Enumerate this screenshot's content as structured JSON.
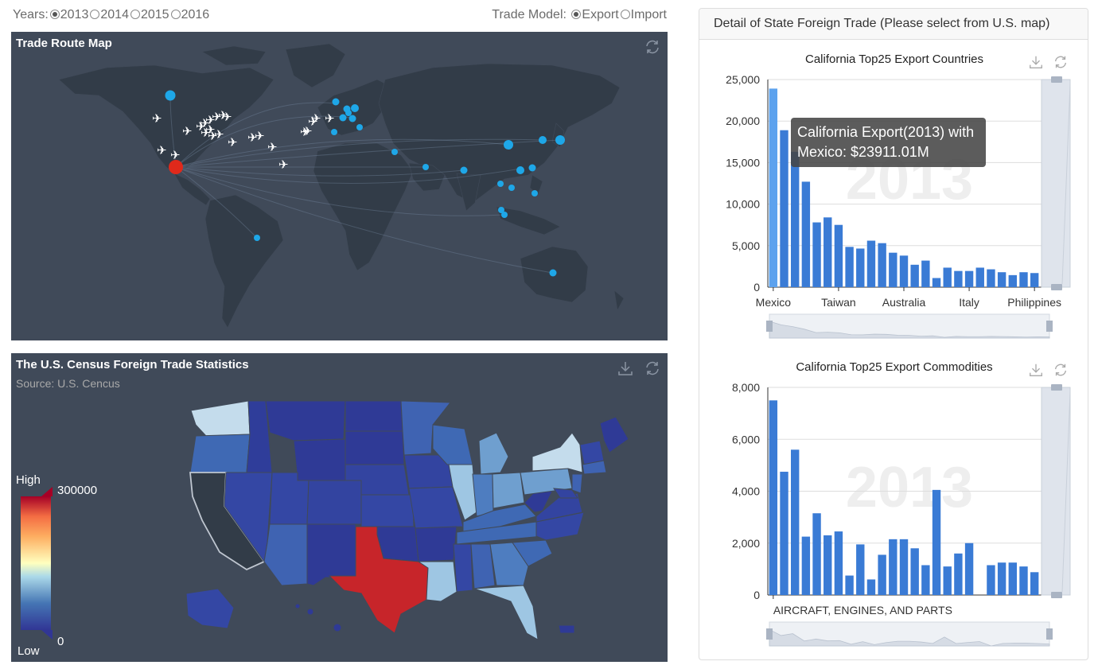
{
  "controls": {
    "years_label": "Years:",
    "years": [
      {
        "label": "2013",
        "checked": true
      },
      {
        "label": "2014",
        "checked": false
      },
      {
        "label": "2015",
        "checked": false
      },
      {
        "label": "2016",
        "checked": false
      }
    ],
    "model_label": "Trade Model:",
    "models": [
      {
        "label": "Export",
        "checked": true
      },
      {
        "label": "Import",
        "checked": false
      }
    ]
  },
  "route_map": {
    "title": "Trade Route Map",
    "icons": [
      "refresh-icon"
    ],
    "colors": {
      "background": "#404a59",
      "land": "#323c48",
      "point": "#1ea7e8",
      "origin": "#e0291b",
      "plane": "#ffffff"
    }
  },
  "us_map": {
    "title": "The U.S. Census Foreign Trade Statistics",
    "subtitle": "Source: U.S. Cencus",
    "icons": [
      "download-icon",
      "refresh-icon"
    ],
    "visual_map": {
      "high_label": "High",
      "low_label": "Low",
      "max": "300000",
      "min": "0"
    },
    "colors": {
      "low": "#313695",
      "mid": "#e0f3f8",
      "high": "#a50026",
      "selected": "#323c48"
    }
  },
  "detail": {
    "header": "Detail of State Foreign Trade (Please select from U.S. map)",
    "countries_chart": {
      "title": "California Top25 Export Countries",
      "watermark": "2013",
      "tooltip_line1": "California Export(2013) with",
      "tooltip_line2": "Mexico: $23911.01M",
      "icons": [
        "download-icon",
        "refresh-icon"
      ]
    },
    "commodities_chart": {
      "title": "California Top25 Export Commodities",
      "watermark": "2013",
      "icons": [
        "download-icon",
        "refresh-icon"
      ]
    }
  },
  "chart_data": [
    {
      "type": "bar",
      "title": "California Top25 Export Countries",
      "categories": [
        "Mexico",
        "",
        "",
        "",
        "",
        "",
        "Taiwan",
        "",
        "",
        "",
        "",
        "",
        "Australia",
        "",
        "",
        "",
        "",
        "",
        "Italy",
        "",
        "",
        "",
        "",
        "",
        "Philippines"
      ],
      "category_labels_shown": [
        "Mexico",
        "Taiwan",
        "Australia",
        "Italy",
        "Philippines"
      ],
      "values": [
        23911,
        18900,
        16300,
        12700,
        7800,
        8400,
        7500,
        4850,
        4650,
        5600,
        5300,
        4150,
        3800,
        2700,
        3200,
        1100,
        2350,
        1950,
        1950,
        2350,
        2150,
        1800,
        1450,
        1800,
        1700
      ],
      "ylim": [
        0,
        25000
      ],
      "yticks": [
        "0",
        "5,000",
        "10,000",
        "15,000",
        "20,000",
        "25,000"
      ],
      "highlight_index": 0,
      "colors": {
        "bar": "#3a7bd5",
        "highlight": "#5ca2ee"
      }
    },
    {
      "type": "bar",
      "title": "California Top25 Export Commodities",
      "categories": [
        "AIRCRAFT, ENGINES, AND PARTS",
        "",
        "",
        "",
        "",
        "",
        "",
        "",
        "",
        "",
        "",
        "",
        "",
        "",
        "",
        "",
        "",
        "",
        "",
        "",
        "",
        "",
        "",
        "",
        ""
      ],
      "category_labels_shown": [
        "AIRCRAFT, ENGINES, AND PARTS"
      ],
      "values": [
        7500,
        4750,
        5600,
        2250,
        3150,
        2300,
        2450,
        750,
        1950,
        600,
        1550,
        2150,
        2150,
        1800,
        1150,
        4050,
        1100,
        1600,
        2000,
        0,
        1150,
        1250,
        1250,
        1100,
        880
      ],
      "ylim": [
        0,
        8000
      ],
      "yticks": [
        "0",
        "2,000",
        "4,000",
        "6,000",
        "8,000"
      ],
      "colors": {
        "bar": "#3a7bd5"
      }
    }
  ]
}
